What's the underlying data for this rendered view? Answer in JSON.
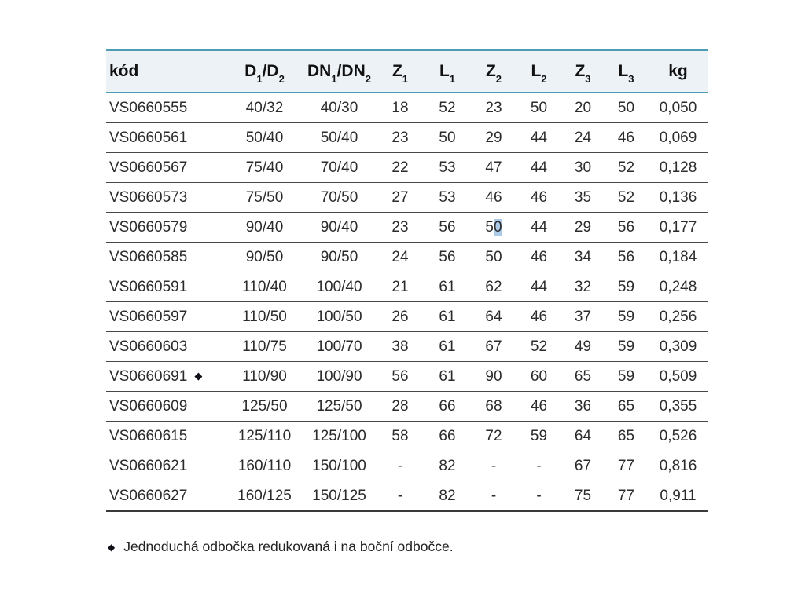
{
  "colors": {
    "accent_line": "#4d9db4",
    "header_background": "#edf2f7",
    "row_separator": "#474747",
    "selection_highlight": "#abcbe8",
    "text": "#262626"
  },
  "table": {
    "columns": [
      {
        "key": "kod",
        "label": "kód"
      },
      {
        "key": "d1-d2",
        "label": "D₁/D₂"
      },
      {
        "key": "dn1-dn2",
        "label": "DN₁/DN₂"
      },
      {
        "key": "z1",
        "label": "Z₁"
      },
      {
        "key": "l1",
        "label": "L₁"
      },
      {
        "key": "z2",
        "label": "Z₂"
      },
      {
        "key": "l2",
        "label": "L₂"
      },
      {
        "key": "z3",
        "label": "Z₃"
      },
      {
        "key": "l3",
        "label": "L₃"
      },
      {
        "key": "kg",
        "label": "kg"
      }
    ],
    "rows": [
      {
        "kod": "VS0660555",
        "marker": "",
        "cells": [
          "40/32",
          "40/30",
          "18",
          "52",
          "23",
          "50",
          "20",
          "50",
          "0,050"
        ]
      },
      {
        "kod": "VS0660561",
        "marker": "",
        "cells": [
          "50/40",
          "50/40",
          "23",
          "50",
          "29",
          "44",
          "24",
          "46",
          "0,069"
        ]
      },
      {
        "kod": "VS0660567",
        "marker": "",
        "cells": [
          "75/40",
          "70/40",
          "22",
          "53",
          "47",
          "44",
          "30",
          "52",
          "0,128"
        ]
      },
      {
        "kod": "VS0660573",
        "marker": "",
        "cells": [
          "75/50",
          "70/50",
          "27",
          "53",
          "46",
          "46",
          "35",
          "52",
          "0,136"
        ]
      },
      {
        "kod": "VS0660579",
        "marker": "",
        "cells": [
          "90/40",
          "90/40",
          "23",
          "56",
          "50",
          "44",
          "29",
          "56",
          "0,177"
        ]
      },
      {
        "kod": "VS0660585",
        "marker": "",
        "cells": [
          "90/50",
          "90/50",
          "24",
          "56",
          "50",
          "46",
          "34",
          "56",
          "0,184"
        ]
      },
      {
        "kod": "VS0660591",
        "marker": "",
        "cells": [
          "110/40",
          "100/40",
          "21",
          "61",
          "62",
          "44",
          "32",
          "59",
          "0,248"
        ]
      },
      {
        "kod": "VS0660597",
        "marker": "",
        "cells": [
          "110/50",
          "100/50",
          "26",
          "61",
          "64",
          "46",
          "37",
          "59",
          "0,256"
        ]
      },
      {
        "kod": "VS0660603",
        "marker": "",
        "cells": [
          "110/75",
          "100/70",
          "38",
          "61",
          "67",
          "52",
          "49",
          "59",
          "0,309"
        ]
      },
      {
        "kod": "VS0660691",
        "marker": "◆",
        "cells": [
          "110/90",
          "100/90",
          "56",
          "61",
          "90",
          "60",
          "65",
          "59",
          "0,509"
        ]
      },
      {
        "kod": "VS0660609",
        "marker": "",
        "cells": [
          "125/50",
          "125/50",
          "28",
          "66",
          "68",
          "46",
          "36",
          "65",
          "0,355"
        ]
      },
      {
        "kod": "VS0660615",
        "marker": "",
        "cells": [
          "125/110",
          "125/100",
          "58",
          "66",
          "72",
          "59",
          "64",
          "65",
          "0,526"
        ]
      },
      {
        "kod": "VS0660621",
        "marker": "",
        "cells": [
          "160/110",
          "150/100",
          "-",
          "82",
          "-",
          "-",
          "67",
          "77",
          "0,816"
        ]
      },
      {
        "kod": "VS0660627",
        "marker": "",
        "cells": [
          "160/125",
          "150/125",
          "-",
          "82",
          "-",
          "-",
          "75",
          "77",
          "0,911"
        ]
      }
    ],
    "selection_highlight": {
      "row_index": 4,
      "cell_index": 4,
      "char_start": 1,
      "char_end": 2
    }
  },
  "footnote": {
    "marker": "◆",
    "text": "Jednoduchá odbočka redukovaná i na boční odbočce."
  }
}
